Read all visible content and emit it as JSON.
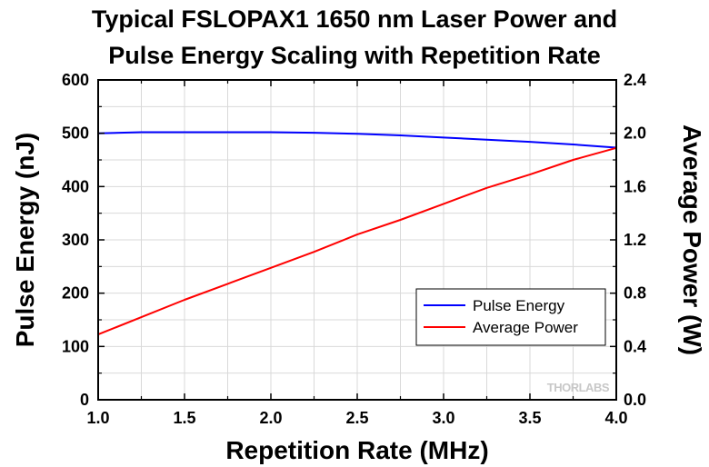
{
  "chart_data": {
    "type": "line",
    "title_line1": "Typical FSLOPAX1 1650 nm Laser Power and",
    "title_line2": "Pulse Energy Scaling with Repetition Rate",
    "xlabel": "Repetition Rate (MHz)",
    "ylabel_left": "Pulse Energy (nJ)",
    "ylabel_right": "Average Power (W)",
    "xlim": [
      1.0,
      4.0
    ],
    "ylim_left": [
      0,
      600
    ],
    "ylim_right": [
      0,
      2.4
    ],
    "x_ticks": [
      "1.0",
      "1.5",
      "2.0",
      "2.5",
      "3.0",
      "3.5",
      "4.0"
    ],
    "y_left_ticks": [
      "0",
      "100",
      "200",
      "300",
      "400",
      "500",
      "600"
    ],
    "y_right_ticks": [
      "0.0",
      "0.4",
      "0.8",
      "1.2",
      "1.6",
      "2.0",
      "2.4"
    ],
    "grid": true,
    "legend_position": "bottom-right",
    "series": [
      {
        "name": "Pulse Energy",
        "axis": "left",
        "color": "#0000ff",
        "x": [
          1.0,
          1.25,
          1.5,
          1.75,
          2.0,
          2.25,
          2.5,
          2.75,
          3.0,
          3.25,
          3.5,
          3.75,
          4.0
        ],
        "y": [
          500,
          502,
          502,
          502,
          502,
          501,
          499,
          496,
          492,
          488,
          484,
          479,
          473
        ]
      },
      {
        "name": "Average Power",
        "axis": "right",
        "color": "#ff0000",
        "x": [
          1.0,
          1.25,
          1.5,
          1.75,
          2.0,
          2.25,
          2.5,
          2.75,
          3.0,
          3.25,
          3.5,
          3.75,
          4.0
        ],
        "y": [
          0.49,
          0.62,
          0.75,
          0.87,
          0.99,
          1.11,
          1.24,
          1.35,
          1.47,
          1.59,
          1.69,
          1.8,
          1.89
        ]
      }
    ],
    "watermark": "THORLABS"
  }
}
